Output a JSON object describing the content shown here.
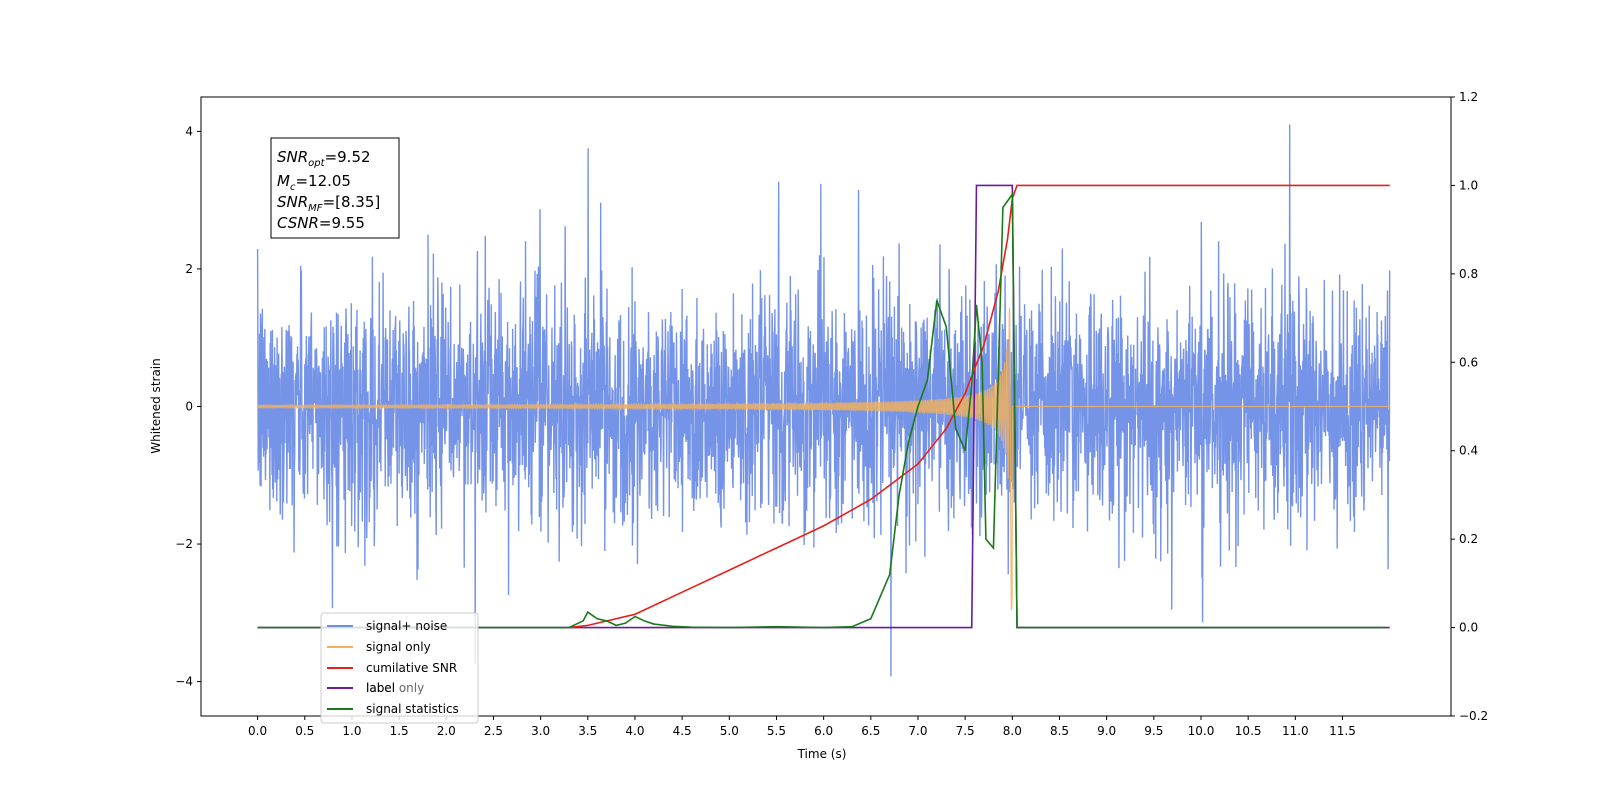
{
  "chart_data": {
    "type": "line",
    "xlabel": "Time (s)",
    "ylabel": "Whitened strain",
    "xlim": [
      -0.6,
      12.65
    ],
    "ylim": [
      -4.5,
      4.5
    ],
    "y2lim": [
      -0.2,
      1.2
    ],
    "x_ticks": [
      0.0,
      0.5,
      1.0,
      1.5,
      2.0,
      2.5,
      3.0,
      3.5,
      4.0,
      4.5,
      5.0,
      5.5,
      6.0,
      6.5,
      7.0,
      7.5,
      8.0,
      8.5,
      9.0,
      9.5,
      10.0,
      10.5,
      11.0,
      11.5
    ],
    "x_tick_labels": [
      "0.0",
      "0.5",
      "1.0",
      "1.5",
      "2.0",
      "2.5",
      "3.0",
      "3.5",
      "4.0",
      "4.5",
      "5.0",
      "5.5",
      "6.0",
      "6.5",
      "7.0",
      "7.5",
      "8.0",
      "8.5",
      "9.0",
      "9.5",
      "10.0",
      "10.5",
      "11.0",
      "11.5"
    ],
    "y_ticks": [
      -4,
      -2,
      0,
      2,
      4
    ],
    "y_tick_labels": [
      "−4",
      "−2",
      "0",
      "2",
      "4"
    ],
    "y2_ticks": [
      -0.2,
      0.0,
      0.2,
      0.4,
      0.6,
      0.8,
      1.0,
      1.2
    ],
    "y2_tick_labels": [
      "−0.2",
      "0.0",
      "0.2",
      "0.4",
      "0.6",
      "0.8",
      "1.0",
      "1.2"
    ],
    "grid": false,
    "legend_position": "lower-left",
    "annotation": {
      "snr_opt": "9.52",
      "mc": "12.05",
      "snr_mf": "[8.35]",
      "csnr": "9.55"
    },
    "series": [
      {
        "name": "signal+ noise",
        "axis": "left",
        "color": "#6f8ee6",
        "description_kind": "noise",
        "x_range": [
          0.0,
          12.0
        ],
        "amplitude_typical": 1.5,
        "amplitude_peak": 4.1
      },
      {
        "name": "signal only",
        "axis": "left",
        "color": "#f0b060",
        "description_kind": "chirp",
        "x_range": [
          0.0,
          8.0
        ],
        "max_amplitude": 3.0,
        "t_merge": 8.0
      },
      {
        "name": "cumilative SNR",
        "axis": "right",
        "color": "#e8201a",
        "x": [
          3.3,
          3.5,
          4.0,
          4.5,
          5.0,
          5.5,
          6.0,
          6.5,
          7.0,
          7.3,
          7.5,
          7.7,
          7.85,
          7.95,
          8.0,
          8.05,
          12.0
        ],
        "y": [
          0.0,
          0.005,
          0.03,
          0.08,
          0.13,
          0.18,
          0.23,
          0.29,
          0.37,
          0.45,
          0.53,
          0.64,
          0.76,
          0.88,
          0.97,
          1.0,
          1.0
        ]
      },
      {
        "name": "label",
        "axis": "right",
        "color": "#6a1b9a",
        "x": [
          0.0,
          7.57,
          7.62,
          8.0,
          8.05,
          12.0
        ],
        "y": [
          0.0,
          0.0,
          1.0,
          1.0,
          0.0,
          0.0
        ]
      },
      {
        "name": "label only",
        "axis": "right",
        "color": "#c8b8d8",
        "x": [],
        "y": []
      },
      {
        "name": "signal statistics",
        "axis": "right",
        "color": "#1a7a1a",
        "x": [
          0.0,
          3.0,
          3.3,
          3.45,
          3.5,
          3.6,
          3.7,
          3.8,
          3.9,
          4.0,
          4.1,
          4.2,
          4.4,
          4.6,
          5.0,
          5.5,
          6.0,
          6.3,
          6.5,
          6.7,
          6.8,
          6.9,
          7.0,
          7.1,
          7.2,
          7.3,
          7.4,
          7.5,
          7.57,
          7.62,
          7.68,
          7.72,
          7.8,
          7.9,
          8.0,
          8.05,
          8.1,
          9.0,
          11.0,
          11.95
        ],
        "y": [
          0.0,
          0.0,
          0.0,
          0.015,
          0.035,
          0.02,
          0.015,
          0.005,
          0.01,
          0.025,
          0.015,
          0.008,
          0.003,
          0.001,
          0.0,
          0.002,
          0.0,
          0.002,
          0.02,
          0.12,
          0.3,
          0.42,
          0.5,
          0.56,
          0.74,
          0.68,
          0.45,
          0.4,
          0.55,
          0.73,
          0.6,
          0.2,
          0.18,
          0.95,
          0.98,
          0.0,
          0.0,
          0.0,
          0.0,
          0.0
        ]
      }
    ]
  }
}
